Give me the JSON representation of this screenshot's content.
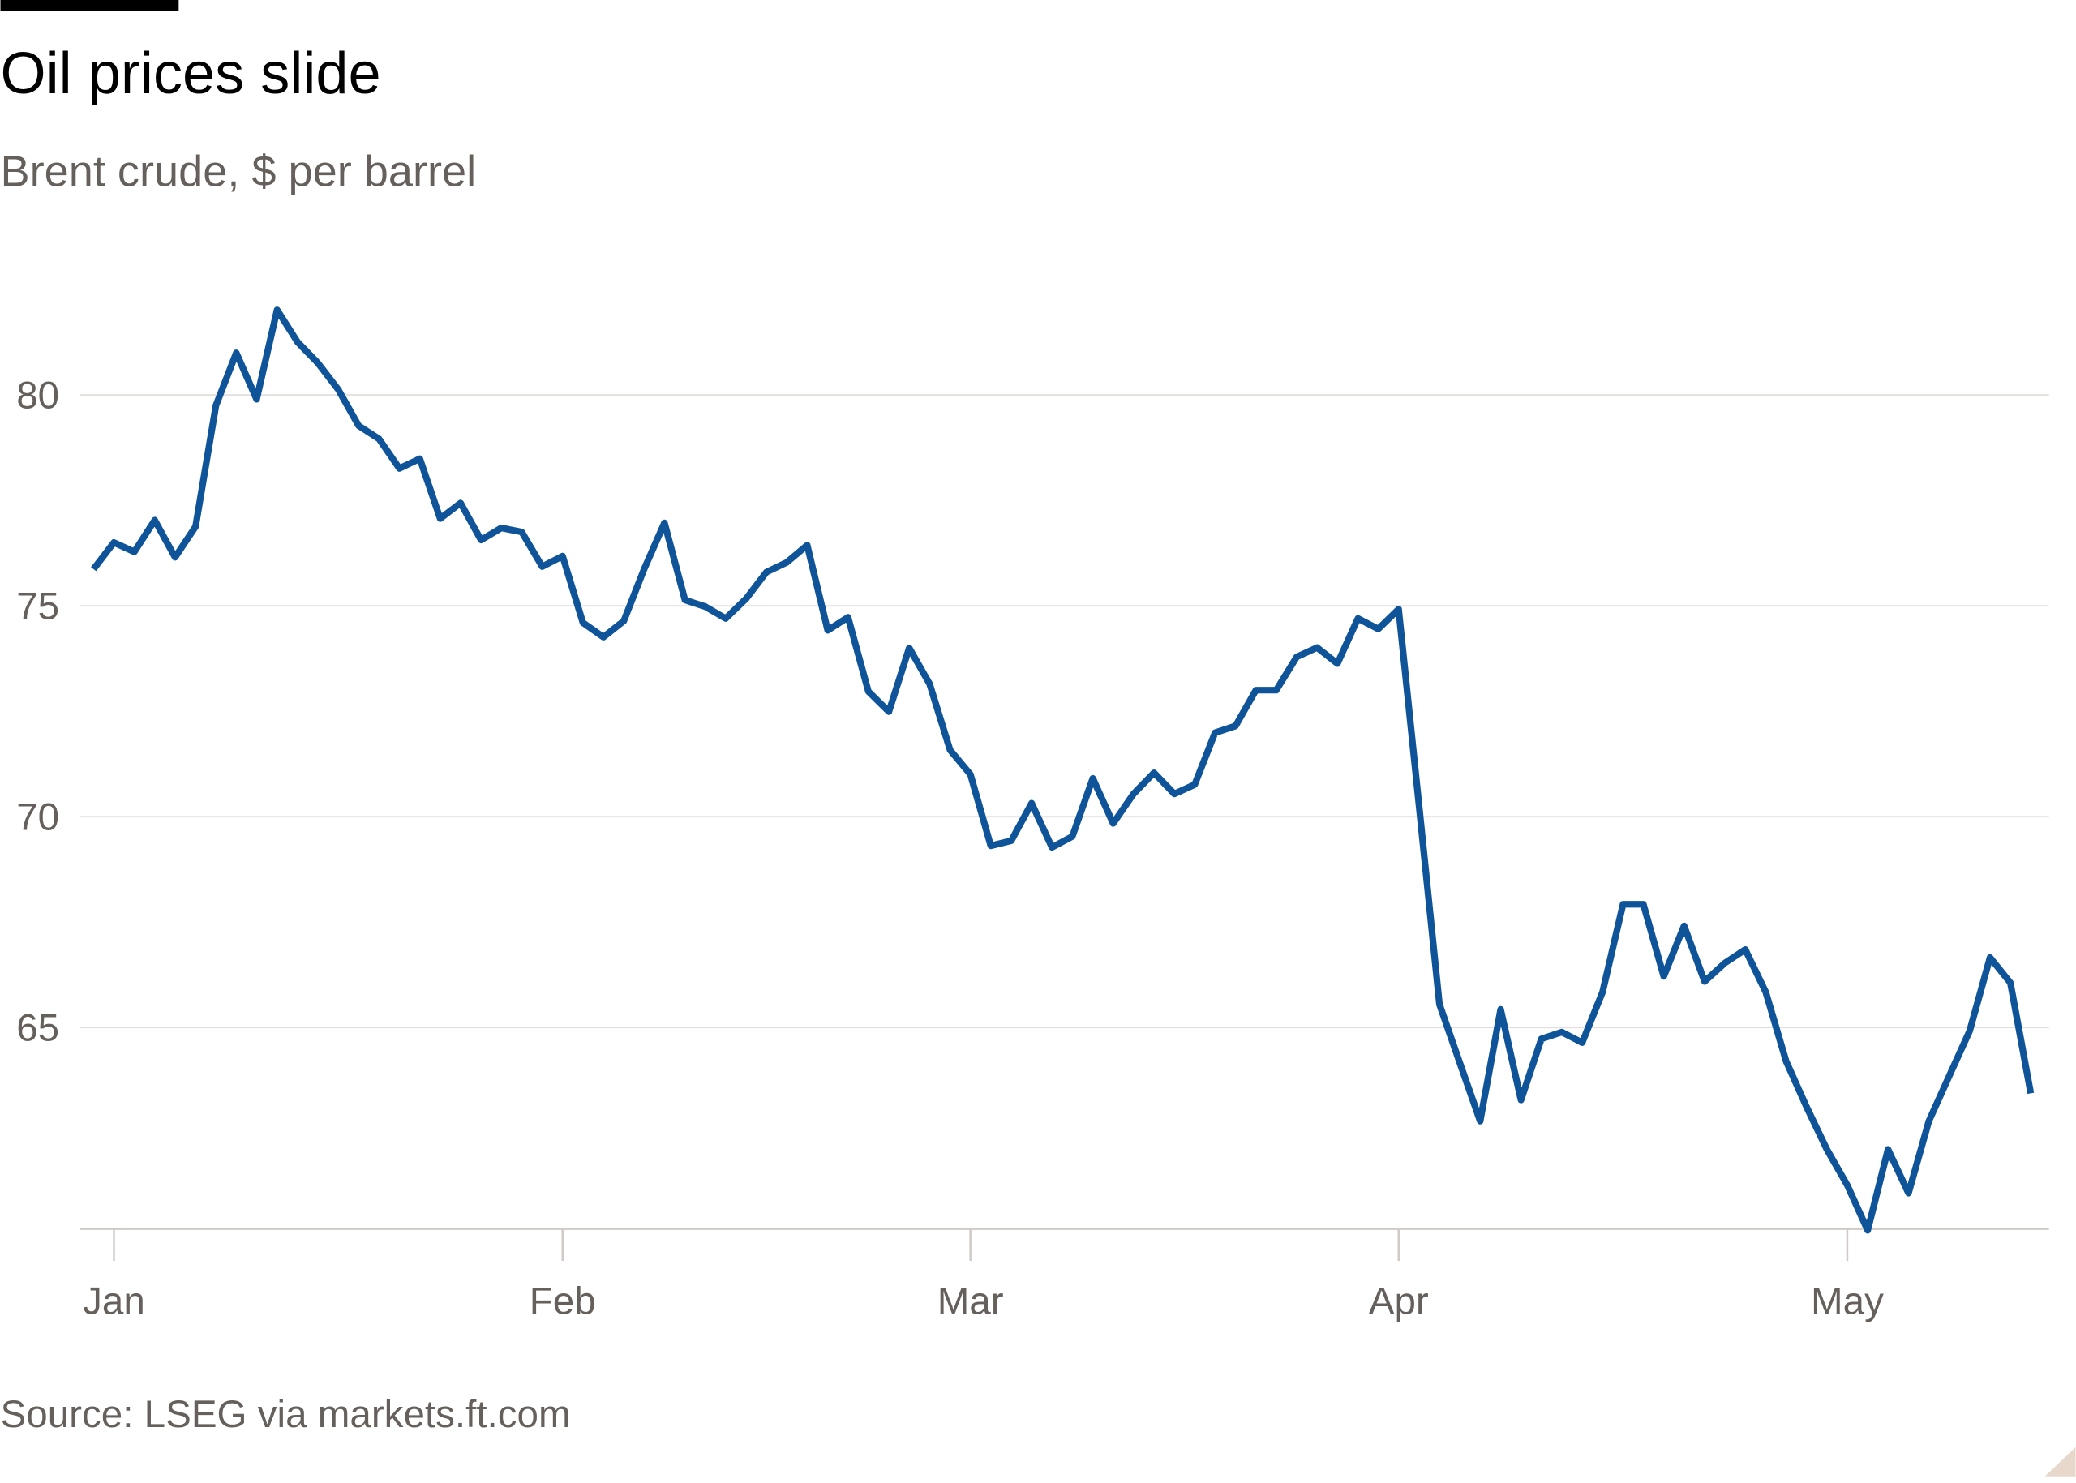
{
  "chart_data": {
    "type": "line",
    "title": "Oil prices slide",
    "subtitle": "Brent crude, $ per barrel",
    "source": "Source: LSEG via markets.ft.com",
    "xlabel": "",
    "ylabel": "",
    "y_ticks": [
      65,
      70,
      75,
      80
    ],
    "ylim": [
      60,
      83
    ],
    "x_ticks": [
      {
        "label": "Jan",
        "date": "2025-01-02"
      },
      {
        "label": "Feb",
        "date": "2025-02-03"
      },
      {
        "label": "Mar",
        "date": "2025-03-03"
      },
      {
        "label": "Apr",
        "date": "2025-04-01"
      },
      {
        "label": "May",
        "date": "2025-05-01"
      }
    ],
    "grid": true,
    "line_color": "#0f5499",
    "series": [
      {
        "dates": [
          "2024-12-31",
          "2025-01-02",
          "2025-01-03",
          "2025-01-06",
          "2025-01-07",
          "2025-01-08",
          "2025-01-09",
          "2025-01-10",
          "2025-01-13",
          "2025-01-14",
          "2025-01-15",
          "2025-01-16",
          "2025-01-17",
          "2025-01-20",
          "2025-01-21",
          "2025-01-22",
          "2025-01-23",
          "2025-01-24",
          "2025-01-27",
          "2025-01-28",
          "2025-01-29",
          "2025-01-30",
          "2025-01-31",
          "2025-02-03",
          "2025-02-04",
          "2025-02-05",
          "2025-02-06",
          "2025-02-07",
          "2025-02-10",
          "2025-02-11",
          "2025-02-12",
          "2025-02-13",
          "2025-02-14",
          "2025-02-17",
          "2025-02-18",
          "2025-02-19",
          "2025-02-20",
          "2025-02-21",
          "2025-02-24",
          "2025-02-25",
          "2025-02-26",
          "2025-02-27",
          "2025-02-28",
          "2025-03-03",
          "2025-03-04",
          "2025-03-05",
          "2025-03-06",
          "2025-03-07",
          "2025-03-10",
          "2025-03-11",
          "2025-03-12",
          "2025-03-13",
          "2025-03-14",
          "2025-03-17",
          "2025-03-18",
          "2025-03-19",
          "2025-03-20",
          "2025-03-21",
          "2025-03-24",
          "2025-03-25",
          "2025-03-26",
          "2025-03-27",
          "2025-03-28",
          "2025-03-31",
          "2025-04-01",
          "2025-04-02",
          "2025-04-03",
          "2025-04-04",
          "2025-04-07",
          "2025-04-08",
          "2025-04-09",
          "2025-04-10",
          "2025-04-11",
          "2025-04-14",
          "2025-04-15",
          "2025-04-16",
          "2025-04-17",
          "2025-04-18",
          "2025-04-21",
          "2025-04-22",
          "2025-04-23",
          "2025-04-24",
          "2025-04-25",
          "2025-04-28",
          "2025-04-29",
          "2025-04-30",
          "2025-05-01",
          "2025-05-02",
          "2025-05-05",
          "2025-05-06",
          "2025-05-07",
          "2025-05-08",
          "2025-05-09",
          "2025-05-12",
          "2025-05-13",
          "2025-05-14"
        ],
        "values": [
          75.87,
          76.5,
          76.28,
          77.03,
          76.15,
          76.88,
          79.75,
          81.0,
          79.9,
          82.02,
          81.26,
          80.76,
          80.13,
          79.27,
          78.96,
          78.26,
          78.49,
          77.07,
          77.44,
          76.56,
          76.85,
          76.75,
          75.93,
          76.18,
          74.6,
          74.26,
          74.64,
          75.87,
          76.97,
          75.14,
          74.98,
          74.7,
          75.17,
          75.8,
          76.03,
          76.44,
          74.42,
          74.73,
          72.97,
          72.49,
          74.0,
          73.15,
          71.58,
          71.0,
          69.31,
          69.43,
          70.32,
          69.27,
          69.53,
          70.91,
          69.84,
          70.54,
          71.04,
          70.54,
          70.76,
          71.99,
          72.15,
          73.0,
          73.0,
          73.79,
          74.01,
          73.63,
          74.7,
          74.45,
          74.92,
          70.25,
          65.55,
          64.16,
          62.78,
          65.43,
          63.28,
          64.73,
          64.89,
          64.64,
          65.84,
          67.92,
          67.92,
          66.21,
          67.41,
          66.09,
          66.53,
          66.85,
          65.84,
          64.2,
          63.12,
          62.11,
          61.26,
          60.19,
          62.11,
          61.07,
          62.78,
          63.85,
          64.92,
          66.66,
          66.06,
          63.44
        ]
      }
    ]
  }
}
